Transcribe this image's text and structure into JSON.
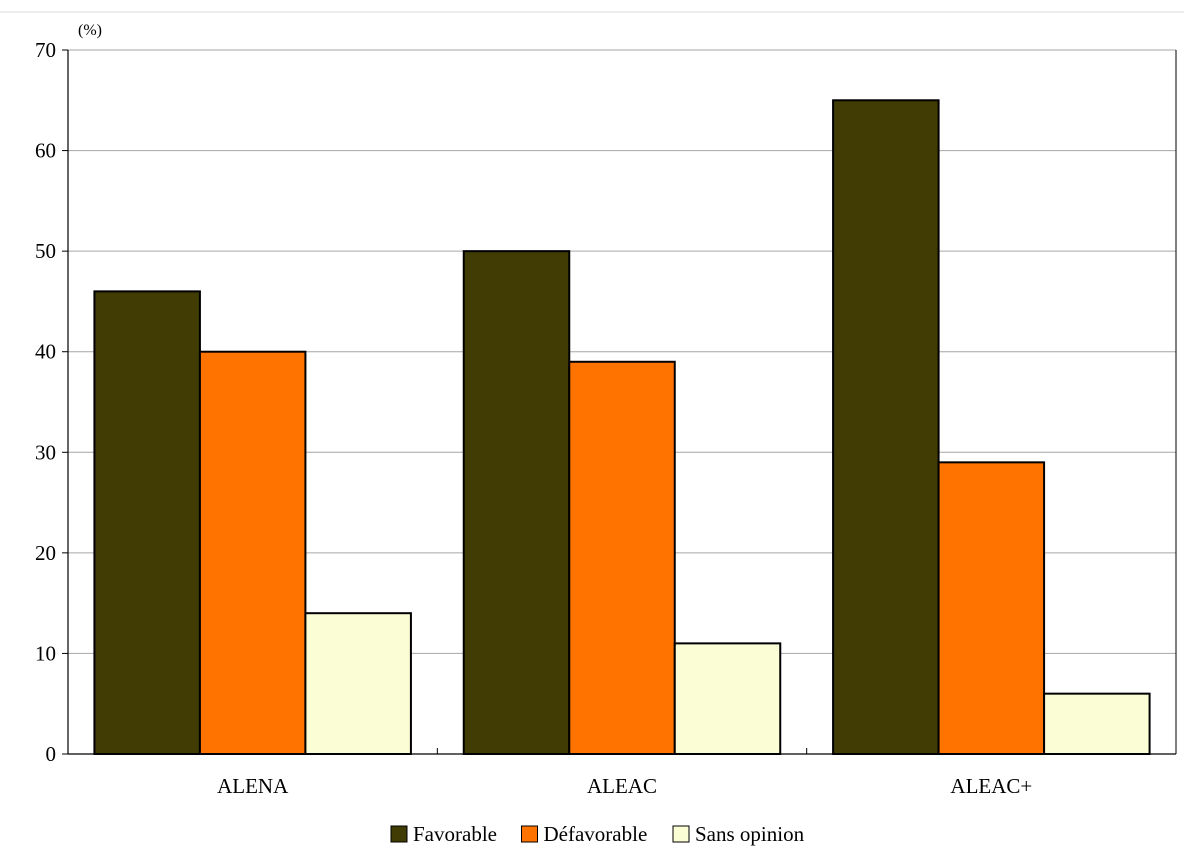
{
  "chart_data": {
    "type": "bar",
    "title": "",
    "xlabel": "",
    "ylabel": "(%)",
    "ylim": [
      0,
      70
    ],
    "yticks": [
      0,
      10,
      20,
      30,
      40,
      50,
      60,
      70
    ],
    "grid": true,
    "legend_position": "bottom",
    "categories": [
      "ALENA",
      "ALEAC",
      "ALEAC+"
    ],
    "series": [
      {
        "name": "Favorable",
        "color": "#403c04",
        "values": [
          46,
          50,
          65
        ]
      },
      {
        "name": "Défavorable",
        "color": "#ff7300",
        "values": [
          40,
          39,
          29
        ]
      },
      {
        "name": "Sans opinion",
        "color": "#fbfdd4",
        "values": [
          14,
          11,
          6
        ]
      }
    ]
  }
}
